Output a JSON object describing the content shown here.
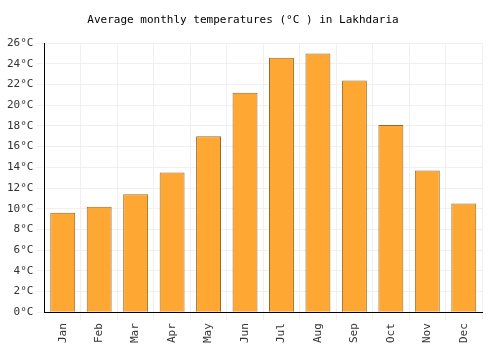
{
  "chart_data": {
    "type": "bar",
    "title": "Average monthly temperatures (°C ) in Lakhdaria",
    "categories": [
      "Jan",
      "Feb",
      "Mar",
      "Apr",
      "May",
      "Jun",
      "Jul",
      "Aug",
      "Sep",
      "Oct",
      "Nov",
      "Dec"
    ],
    "values": [
      9.6,
      10.2,
      11.4,
      13.5,
      17.0,
      21.2,
      24.6,
      25.0,
      22.4,
      18.1,
      13.7,
      10.5
    ],
    "color": "#ffa733",
    "ylim": [
      0,
      26
    ],
    "yticks": [
      {
        "value": 0,
        "label": "0°C"
      },
      {
        "value": 2,
        "label": "2°C"
      },
      {
        "value": 4,
        "label": "4°C"
      },
      {
        "value": 6,
        "label": "6°C"
      },
      {
        "value": 8,
        "label": "8°C"
      },
      {
        "value": 10,
        "label": "10°C"
      },
      {
        "value": 12,
        "label": "12°C"
      },
      {
        "value": 14,
        "label": "14°C"
      },
      {
        "value": 16,
        "label": "16°C"
      },
      {
        "value": 18,
        "label": "18°C"
      },
      {
        "value": 20,
        "label": "20°C"
      },
      {
        "value": 22,
        "label": "22°C"
      },
      {
        "value": 24,
        "label": "24°C"
      },
      {
        "value": 26,
        "label": "26°C"
      }
    ],
    "grid": true
  }
}
